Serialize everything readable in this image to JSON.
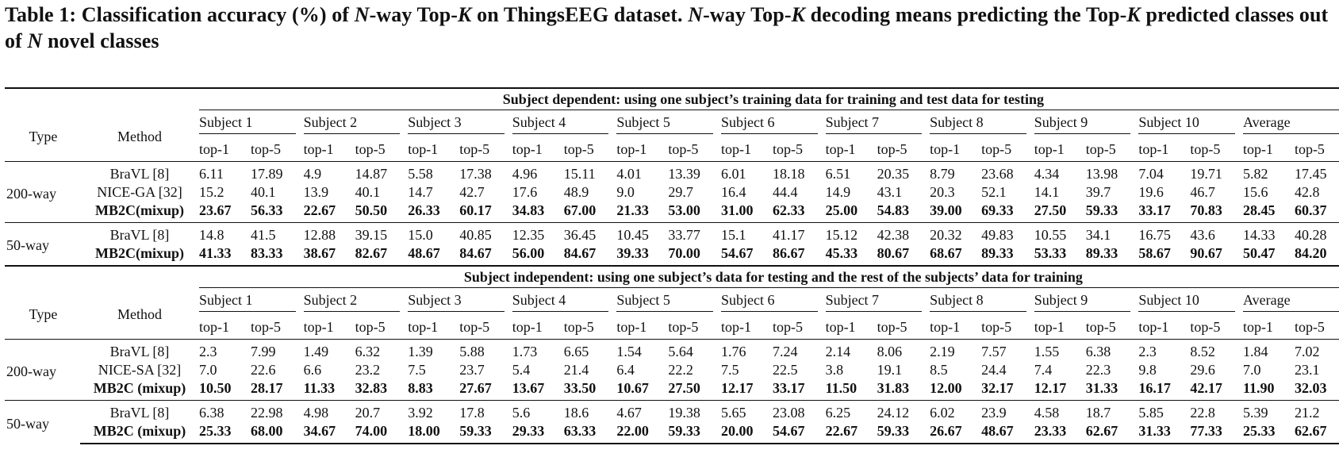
{
  "caption": {
    "label": "Table 1:",
    "text_a": "Classification accuracy (%) of",
    "n1": "N",
    "text_b": "-way Top-",
    "k1": "K",
    "text_c": "on ThingsEEG dataset.",
    "n2": "N",
    "text_d": "-way Top-",
    "k2": "K",
    "text_e": "decoding means predicting the Top-",
    "k3": "K",
    "text_f": "predicted classes out of",
    "n3": "N",
    "text_g": "novel classes"
  },
  "headers": {
    "type": "Type",
    "method": "Method",
    "subjects": [
      "Subject 1",
      "Subject 2",
      "Subject 3",
      "Subject 4",
      "Subject 5",
      "Subject 6",
      "Subject 7",
      "Subject 8",
      "Subject 9",
      "Subject 10",
      "Average"
    ],
    "top1": "top-1",
    "top5": "top-5"
  },
  "sections": [
    {
      "title": "Subject dependent: using one subject’s training data for training and test data for testing",
      "groups": [
        {
          "type": "200-way",
          "rows": [
            {
              "method": "BraVL [8]",
              "bold": false,
              "values": [
                "6.11",
                "17.89",
                "4.9",
                "14.87",
                "5.58",
                "17.38",
                "4.96",
                "15.11",
                "4.01",
                "13.39",
                "6.01",
                "18.18",
                "6.51",
                "20.35",
                "8.79",
                "23.68",
                "4.34",
                "13.98",
                "7.04",
                "19.71",
                "5.82",
                "17.45"
              ]
            },
            {
              "method": "NICE-GA [32]",
              "bold": false,
              "values": [
                "15.2",
                "40.1",
                "13.9",
                "40.1",
                "14.7",
                "42.7",
                "17.6",
                "48.9",
                "9.0",
                "29.7",
                "16.4",
                "44.4",
                "14.9",
                "43.1",
                "20.3",
                "52.1",
                "14.1",
                "39.7",
                "19.6",
                "46.7",
                "15.6",
                "42.8"
              ]
            },
            {
              "method": "MB2C(mixup)",
              "bold": true,
              "values": [
                "23.67",
                "56.33",
                "22.67",
                "50.50",
                "26.33",
                "60.17",
                "34.83",
                "67.00",
                "21.33",
                "53.00",
                "31.00",
                "62.33",
                "25.00",
                "54.83",
                "39.00",
                "69.33",
                "27.50",
                "59.33",
                "33.17",
                "70.83",
                "28.45",
                "60.37"
              ]
            }
          ]
        },
        {
          "type": "50-way",
          "rows": [
            {
              "method": "BraVL [8]",
              "bold": false,
              "values": [
                "14.8",
                "41.5",
                "12.88",
                "39.15",
                "15.0",
                "40.85",
                "12.35",
                "36.45",
                "10.45",
                "33.77",
                "15.1",
                "41.17",
                "15.12",
                "42.38",
                "20.32",
                "49.83",
                "10.55",
                "34.1",
                "16.75",
                "43.6",
                "14.33",
                "40.28"
              ]
            },
            {
              "method": "MB2C(mixup)",
              "bold": true,
              "values": [
                "41.33",
                "83.33",
                "38.67",
                "82.67",
                "48.67",
                "84.67",
                "56.00",
                "84.67",
                "39.33",
                "70.00",
                "54.67",
                "86.67",
                "45.33",
                "80.67",
                "68.67",
                "89.33",
                "53.33",
                "89.33",
                "58.67",
                "90.67",
                "50.47",
                "84.20"
              ]
            }
          ]
        }
      ]
    },
    {
      "title": "Subject independent: using one subject’s data for testing and the rest of the subjects’ data for training",
      "groups": [
        {
          "type": "200-way",
          "rows": [
            {
              "method": "BraVL [8]",
              "bold": false,
              "values": [
                "2.3",
                "7.99",
                "1.49",
                "6.32",
                "1.39",
                "5.88",
                "1.73",
                "6.65",
                "1.54",
                "5.64",
                "1.76",
                "7.24",
                "2.14",
                "8.06",
                "2.19",
                "7.57",
                "1.55",
                "6.38",
                "2.3",
                "8.52",
                "1.84",
                "7.02"
              ]
            },
            {
              "method": "NICE-SA [32]",
              "bold": false,
              "values": [
                "7.0",
                "22.6",
                "6.6",
                "23.2",
                "7.5",
                "23.7",
                "5.4",
                "21.4",
                "6.4",
                "22.2",
                "7.5",
                "22.5",
                "3.8",
                "19.1",
                "8.5",
                "24.4",
                "7.4",
                "22.3",
                "9.8",
                "29.6",
                "7.0",
                "23.1"
              ]
            },
            {
              "method": "MB2C (mixup)",
              "bold": true,
              "values": [
                "10.50",
                "28.17",
                "11.33",
                "32.83",
                "8.83",
                "27.67",
                "13.67",
                "33.50",
                "10.67",
                "27.50",
                "12.17",
                "33.17",
                "11.50",
                "31.83",
                "12.00",
                "32.17",
                "12.17",
                "31.33",
                "16.17",
                "42.17",
                "11.90",
                "32.03"
              ]
            }
          ]
        },
        {
          "type": "50-way",
          "rows": [
            {
              "method": "BraVL [8]",
              "bold": false,
              "values": [
                "6.38",
                "22.98",
                "4.98",
                "20.7",
                "3.92",
                "17.8",
                "5.6",
                "18.6",
                "4.67",
                "19.38",
                "5.65",
                "23.08",
                "6.25",
                "24.12",
                "6.02",
                "23.9",
                "4.58",
                "18.7",
                "5.85",
                "22.8",
                "5.39",
                "21.2"
              ]
            },
            {
              "method": "MB2C (mixup)",
              "bold": true,
              "values": [
                "25.33",
                "68.00",
                "34.67",
                "74.00",
                "18.00",
                "59.33",
                "29.33",
                "63.33",
                "22.00",
                "59.33",
                "20.00",
                "54.67",
                "22.67",
                "59.33",
                "26.67",
                "48.67",
                "23.33",
                "62.67",
                "31.33",
                "77.33",
                "25.33",
                "62.67"
              ]
            }
          ]
        }
      ]
    }
  ]
}
